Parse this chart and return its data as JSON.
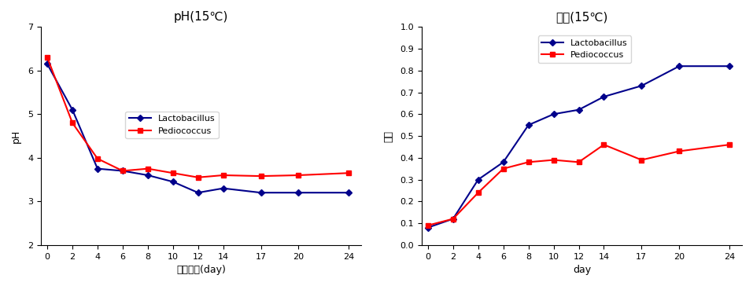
{
  "x_days": [
    0,
    2,
    4,
    6,
    8,
    10,
    12,
    14,
    17,
    20,
    24
  ],
  "ph_lacto": [
    6.15,
    5.1,
    3.75,
    3.7,
    3.6,
    3.45,
    3.2,
    3.3,
    3.2,
    3.2,
    3.2
  ],
  "ph_pedio": [
    6.3,
    4.8,
    3.98,
    3.7,
    3.75,
    3.65,
    3.55,
    3.6,
    3.58,
    3.6,
    3.65
  ],
  "acid_lacto": [
    0.08,
    0.12,
    0.3,
    0.38,
    0.55,
    0.6,
    0.62,
    0.68,
    0.73,
    0.82,
    0.82
  ],
  "acid_pedio": [
    0.09,
    0.12,
    0.24,
    0.35,
    0.38,
    0.39,
    0.38,
    0.46,
    0.39,
    0.43,
    0.46
  ],
  "ph_title": "pH(15℃)",
  "acid_title": "종산(15℃)",
  "ph_xlabel": "발효기간(day)",
  "acid_xlabel": "day",
  "ph_ylabel": "pH",
  "acid_ylabel": "종산",
  "lacto_label": "Lactobacillus",
  "pedio_label": "Pediococcus",
  "lacto_color": "#00008B",
  "pedio_color": "#FF0000",
  "ph_ylim": [
    2,
    7
  ],
  "ph_yticks": [
    2,
    3,
    4,
    5,
    6,
    7
  ],
  "acid_ylim": [
    0.0,
    1.0
  ],
  "acid_yticks": [
    0.0,
    0.1,
    0.2,
    0.3,
    0.4,
    0.5,
    0.6,
    0.7,
    0.8,
    0.9,
    1.0
  ],
  "ph_legend_loc": "upper center",
  "acid_legend_loc": "upper left"
}
